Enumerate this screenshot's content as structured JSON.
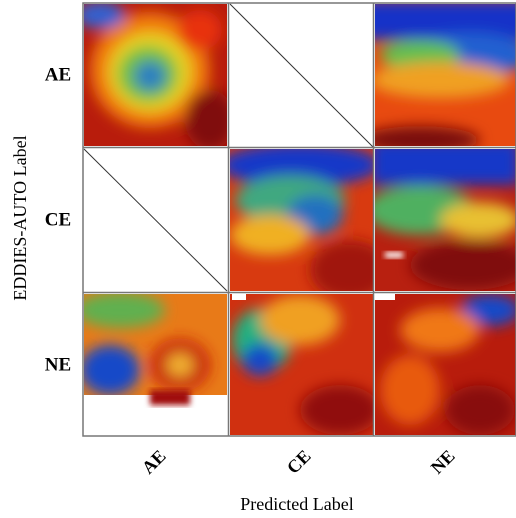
{
  "y_axis_label": "EDDIES-AUTO Label",
  "x_axis_label": "Predicted Label",
  "row_labels": [
    "AE",
    "CE",
    "NE"
  ],
  "column_labels": [
    "AE",
    "CE",
    "NE"
  ]
}
